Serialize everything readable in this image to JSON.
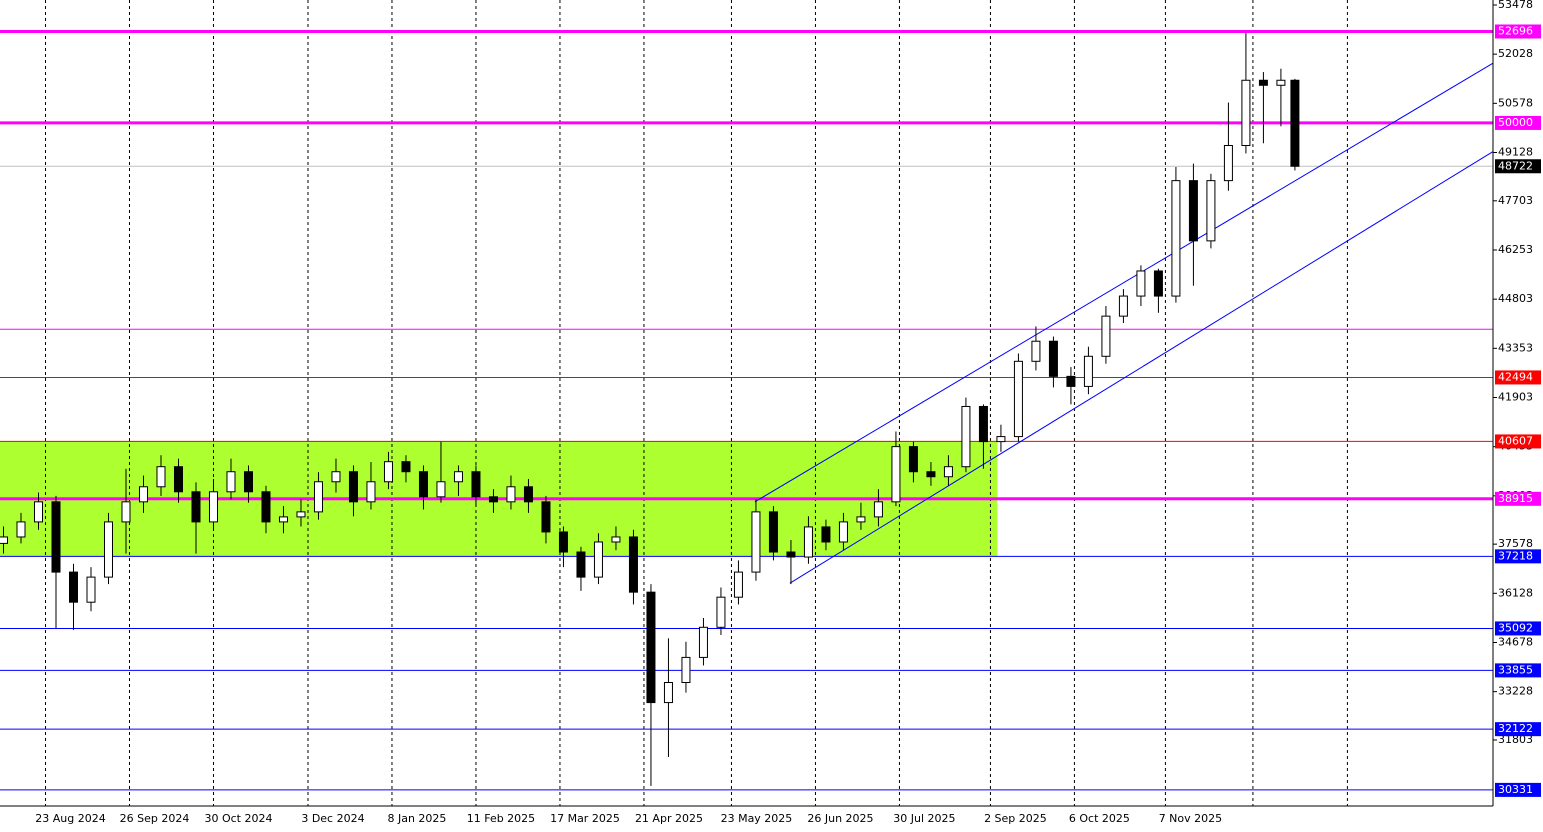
{
  "chart_data": {
    "type": "candlestick",
    "color_up": "#ffffff",
    "color_down": "#000000",
    "xlim": [
      0,
      426.6
    ],
    "ylim": [
      29856,
      53625
    ],
    "xticks": [
      {
        "value": 13,
        "label": "23 Aug 2024"
      },
      {
        "value": 37,
        "label": "26 Sep 2024"
      },
      {
        "value": 61,
        "label": "30 Oct 2024"
      },
      {
        "value": 88,
        "label": "3 Dec 2024"
      },
      {
        "value": 112,
        "label": "8 Jan 2025"
      },
      {
        "value": 136,
        "label": "11 Feb 2025"
      },
      {
        "value": 160,
        "label": "17 Mar 2025"
      },
      {
        "value": 184,
        "label": "21 Apr 2025"
      },
      {
        "value": 209,
        "label": "23 May 2025"
      },
      {
        "value": 233,
        "label": "26 Jun 2025"
      },
      {
        "value": 257,
        "label": "30 Jul 2025"
      },
      {
        "value": 283,
        "label": "2 Sep 2025"
      },
      {
        "value": 307,
        "label": "6 Oct 2025"
      },
      {
        "value": 333,
        "label": "7 Nov 2025"
      }
    ],
    "xgrid_extra": [
      358,
      385
    ],
    "yticks": [
      53478,
      52028,
      50578,
      49128,
      47703,
      46253,
      44803,
      43353,
      41903,
      40453,
      39003,
      37578,
      36128,
      34678,
      33228,
      31803
    ],
    "x": [
      1,
      6,
      11,
      16,
      21,
      26,
      31,
      36,
      41,
      46,
      51,
      56,
      61,
      66,
      71,
      76,
      81,
      86,
      91,
      96,
      101,
      106,
      111,
      116,
      121,
      126,
      131,
      136,
      141,
      146,
      151,
      156,
      161,
      166,
      171,
      176,
      181,
      186,
      191,
      196,
      201,
      206,
      211,
      216,
      221,
      226,
      231,
      236,
      241,
      246,
      251,
      256,
      261,
      266,
      271,
      276,
      281,
      286,
      291,
      296,
      301,
      306,
      311,
      316,
      321,
      326,
      331,
      336,
      341,
      346,
      351,
      356,
      361,
      366,
      370
    ],
    "open": [
      37600,
      37790,
      38234,
      38826,
      36754,
      35866,
      36606,
      38234,
      38826,
      39270,
      39862,
      39122,
      38234,
      39122,
      39714,
      39122,
      38234,
      38382,
      38530,
      39418,
      39714,
      38826,
      39418,
      40010,
      39714,
      38974,
      39418,
      39714,
      38974,
      38826,
      39270,
      38826,
      37938,
      37346,
      36606,
      37642,
      37790,
      36162,
      32906,
      33498,
      34238,
      35126,
      36014,
      36754,
      38530,
      37346,
      37198,
      38086,
      37642,
      38234,
      38382,
      38826,
      40454,
      39714,
      39566,
      39862,
      41638,
      40602,
      40750,
      42970,
      43562,
      42526,
      42230,
      43118,
      44302,
      44894,
      45634,
      44894,
      48298,
      46522,
      48298,
      49334,
      51258,
      51110,
      51258
    ],
    "close": [
      37790,
      38234,
      38826,
      36754,
      35866,
      36606,
      38234,
      38826,
      39270,
      39862,
      39122,
      38234,
      39122,
      39714,
      39122,
      38234,
      38382,
      38530,
      39418,
      39714,
      38826,
      39418,
      40010,
      39714,
      38974,
      39418,
      39714,
      38974,
      38826,
      39270,
      38826,
      37938,
      37346,
      36606,
      37642,
      37790,
      36162,
      32906,
      33498,
      34238,
      35126,
      36014,
      36754,
      38530,
      37346,
      37198,
      38086,
      37642,
      38234,
      38382,
      38826,
      40454,
      39714,
      39566,
      39862,
      41638,
      40602,
      40750,
      42970,
      43562,
      42526,
      42230,
      43118,
      44302,
      44894,
      45634,
      44894,
      48298,
      46522,
      48298,
      49334,
      51258,
      51110,
      51258,
      48722
    ],
    "high": [
      38100,
      38500,
      39100,
      39000,
      37000,
      36900,
      38500,
      39800,
      39600,
      40200,
      40100,
      39400,
      39500,
      40100,
      39900,
      39300,
      38700,
      38900,
      39700,
      40100,
      39900,
      40000,
      40300,
      40200,
      39900,
      40600,
      39900,
      39900,
      39200,
      39600,
      39500,
      39000,
      38100,
      37500,
      37900,
      38100,
      38000,
      36400,
      34800,
      34700,
      35400,
      36300,
      37100,
      38900,
      38700,
      37700,
      38400,
      38300,
      38500,
      38800,
      39200,
      40900,
      40600,
      40000,
      40200,
      41900,
      41700,
      41100,
      43200,
      44000,
      43700,
      42800,
      43400,
      44600,
      45100,
      45800,
      45700,
      48700,
      48800,
      48500,
      50600,
      52650,
      51500,
      51600,
      51300
    ],
    "low": [
      37300,
      37600,
      38000,
      35100,
      35050,
      35600,
      36400,
      37300,
      38500,
      39000,
      38800,
      37300,
      38000,
      38900,
      38800,
      37900,
      37900,
      38100,
      38300,
      39100,
      38400,
      38600,
      39200,
      39400,
      38600,
      38800,
      39000,
      38700,
      38500,
      38600,
      38500,
      37600,
      36900,
      36200,
      36400,
      37400,
      35800,
      30450,
      31300,
      33200,
      34000,
      34900,
      35800,
      36500,
      37100,
      36400,
      37000,
      37400,
      37400,
      38000,
      38100,
      38700,
      39400,
      39300,
      39300,
      39700,
      39800,
      40300,
      40600,
      42700,
      42200,
      41700,
      42000,
      42900,
      44100,
      44600,
      44400,
      44700,
      45200,
      46300,
      48000,
      49100,
      49400,
      49900,
      48600
    ],
    "zone": {
      "x": [
        0,
        285
      ],
      "y": [
        37218,
        40607
      ],
      "color": "#adff2f"
    },
    "trendlines": [
      {
        "x": [
          215.7,
          426.6
        ],
        "y": [
          38826,
          51761
        ],
        "color": "#0000ff"
      },
      {
        "x": [
          225.7,
          426.6
        ],
        "y": [
          36428,
          49156
        ],
        "color": "#0000ff"
      }
    ],
    "levels": [
      {
        "value": 52696,
        "color": "#ff00ff",
        "width": 3,
        "tag": true
      },
      {
        "value": 50000,
        "color": "#ff00ff",
        "width": 3,
        "tag": true
      },
      {
        "value": 48722,
        "color": "#c0c0c0",
        "width": 1,
        "tag": true,
        "tag_color": "#000000"
      },
      {
        "value": 43917,
        "color": "#ff00ff",
        "width": 1,
        "tag": false
      },
      {
        "value": 42494,
        "color": "#ff0000",
        "width": 1,
        "tag": true
      },
      {
        "value": 40607,
        "color": "#ff0000",
        "width": 1,
        "tag": true
      },
      {
        "value": 38915,
        "color": "#ff00ff",
        "width": 3,
        "tag": true
      },
      {
        "value": 37218,
        "color": "#0000ff",
        "width": 1,
        "tag": true
      },
      {
        "value": 35092,
        "color": "#0000ff",
        "width": 1,
        "tag": true
      },
      {
        "value": 33855,
        "color": "#0000ff",
        "width": 1,
        "tag": true
      },
      {
        "value": 32122,
        "color": "#0000ff",
        "width": 1,
        "tag": true
      },
      {
        "value": 30331,
        "color": "#0000ff",
        "width": 1,
        "tag": true
      }
    ]
  }
}
